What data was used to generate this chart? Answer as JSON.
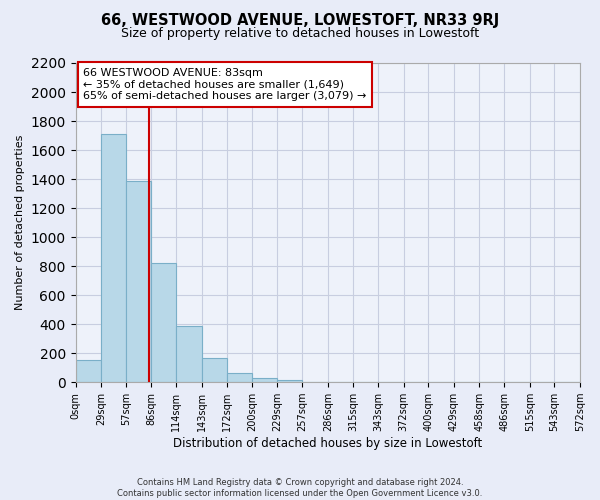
{
  "title": "66, WESTWOOD AVENUE, LOWESTOFT, NR33 9RJ",
  "subtitle": "Size of property relative to detached houses in Lowestoft",
  "xlabel": "Distribution of detached houses by size in Lowestoft",
  "ylabel": "Number of detached properties",
  "bin_edges": [
    0,
    29,
    57,
    86,
    114,
    143,
    172,
    200,
    229,
    257,
    286,
    315,
    343,
    372,
    400,
    429,
    458,
    486,
    515,
    543,
    572
  ],
  "bin_labels": [
    "0sqm",
    "29sqm",
    "57sqm",
    "86sqm",
    "114sqm",
    "143sqm",
    "172sqm",
    "200sqm",
    "229sqm",
    "257sqm",
    "286sqm",
    "315sqm",
    "343sqm",
    "372sqm",
    "400sqm",
    "429sqm",
    "458sqm",
    "486sqm",
    "515sqm",
    "543sqm",
    "572sqm"
  ],
  "bar_heights": [
    155,
    1710,
    1390,
    820,
    385,
    165,
    65,
    30,
    15,
    0,
    0,
    0,
    0,
    0,
    0,
    0,
    0,
    0,
    0,
    0
  ],
  "bar_color": "#b8d8e8",
  "bar_edge_color": "#7aafc8",
  "property_line_x": 83,
  "property_line_color": "#cc0000",
  "ylim": [
    0,
    2200
  ],
  "yticks": [
    0,
    200,
    400,
    600,
    800,
    1000,
    1200,
    1400,
    1600,
    1800,
    2000,
    2200
  ],
  "annotation_line1": "66 WESTWOOD AVENUE: 83sqm",
  "annotation_line2": "← 35% of detached houses are smaller (1,649)",
  "annotation_line3": "65% of semi-detached houses are larger (3,079) →",
  "footer_line1": "Contains HM Land Registry data © Crown copyright and database right 2024.",
  "footer_line2": "Contains public sector information licensed under the Open Government Licence v3.0.",
  "background_color": "#e8ecf8",
  "plot_bg_color": "#eef2fa",
  "grid_color": "#c8cee0",
  "title_fontsize": 10.5,
  "subtitle_fontsize": 9
}
